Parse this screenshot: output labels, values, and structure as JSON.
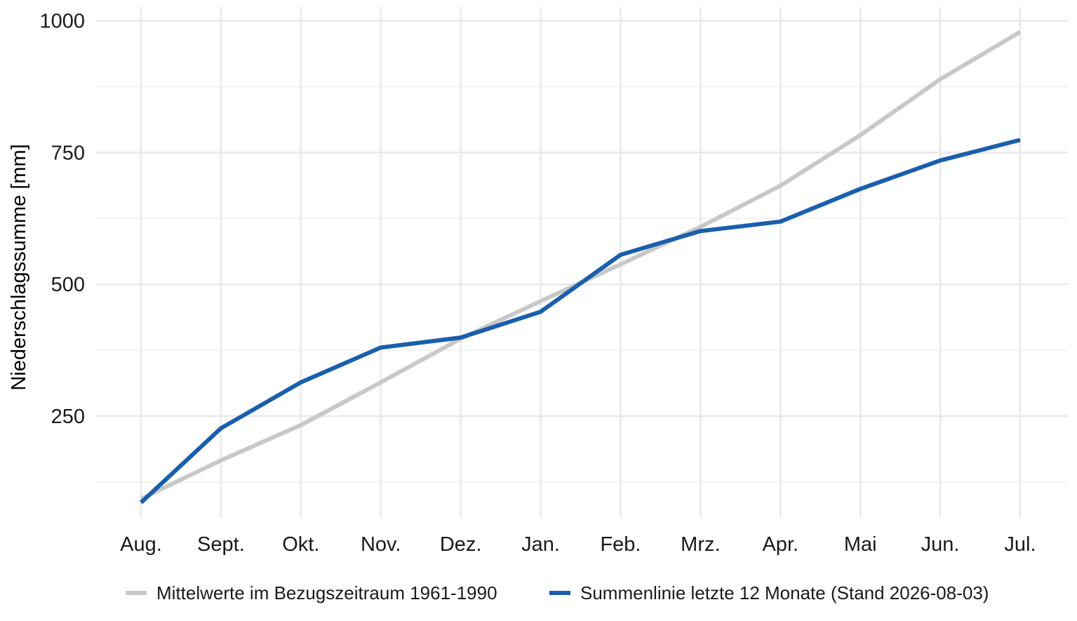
{
  "chart_data": {
    "type": "line",
    "title": "",
    "xlabel": "",
    "ylabel": "Niederschlagssumme [mm]",
    "categories": [
      "Aug.",
      "Sept.",
      "Okt.",
      "Nov.",
      "Dez.",
      "Jan.",
      "Feb.",
      "Mrz.",
      "Apr.",
      "Mai",
      "Jun.",
      "Jul."
    ],
    "ylim": [
      70,
      1025
    ],
    "yticks": [
      250,
      500,
      750,
      1000
    ],
    "ytick_labels": [
      "250",
      "500",
      "750",
      "1000"
    ],
    "grid": true,
    "legend_position": "bottom",
    "series": [
      {
        "name": "Mittelwerte im Bezugszeitraum 1961-1990",
        "color": "#c8c8c8",
        "values": [
          93,
          166,
          233,
          314,
          397,
          468,
          538,
          609,
          687,
          783,
          889,
          979
        ]
      },
      {
        "name": "Summenlinie letzte 12 Monate (Stand 2026-08-03)",
        "color": "#1a5fac",
        "values": [
          86,
          227,
          314,
          380,
          399,
          448,
          556,
          601,
          619,
          681,
          735,
          774
        ]
      }
    ]
  }
}
